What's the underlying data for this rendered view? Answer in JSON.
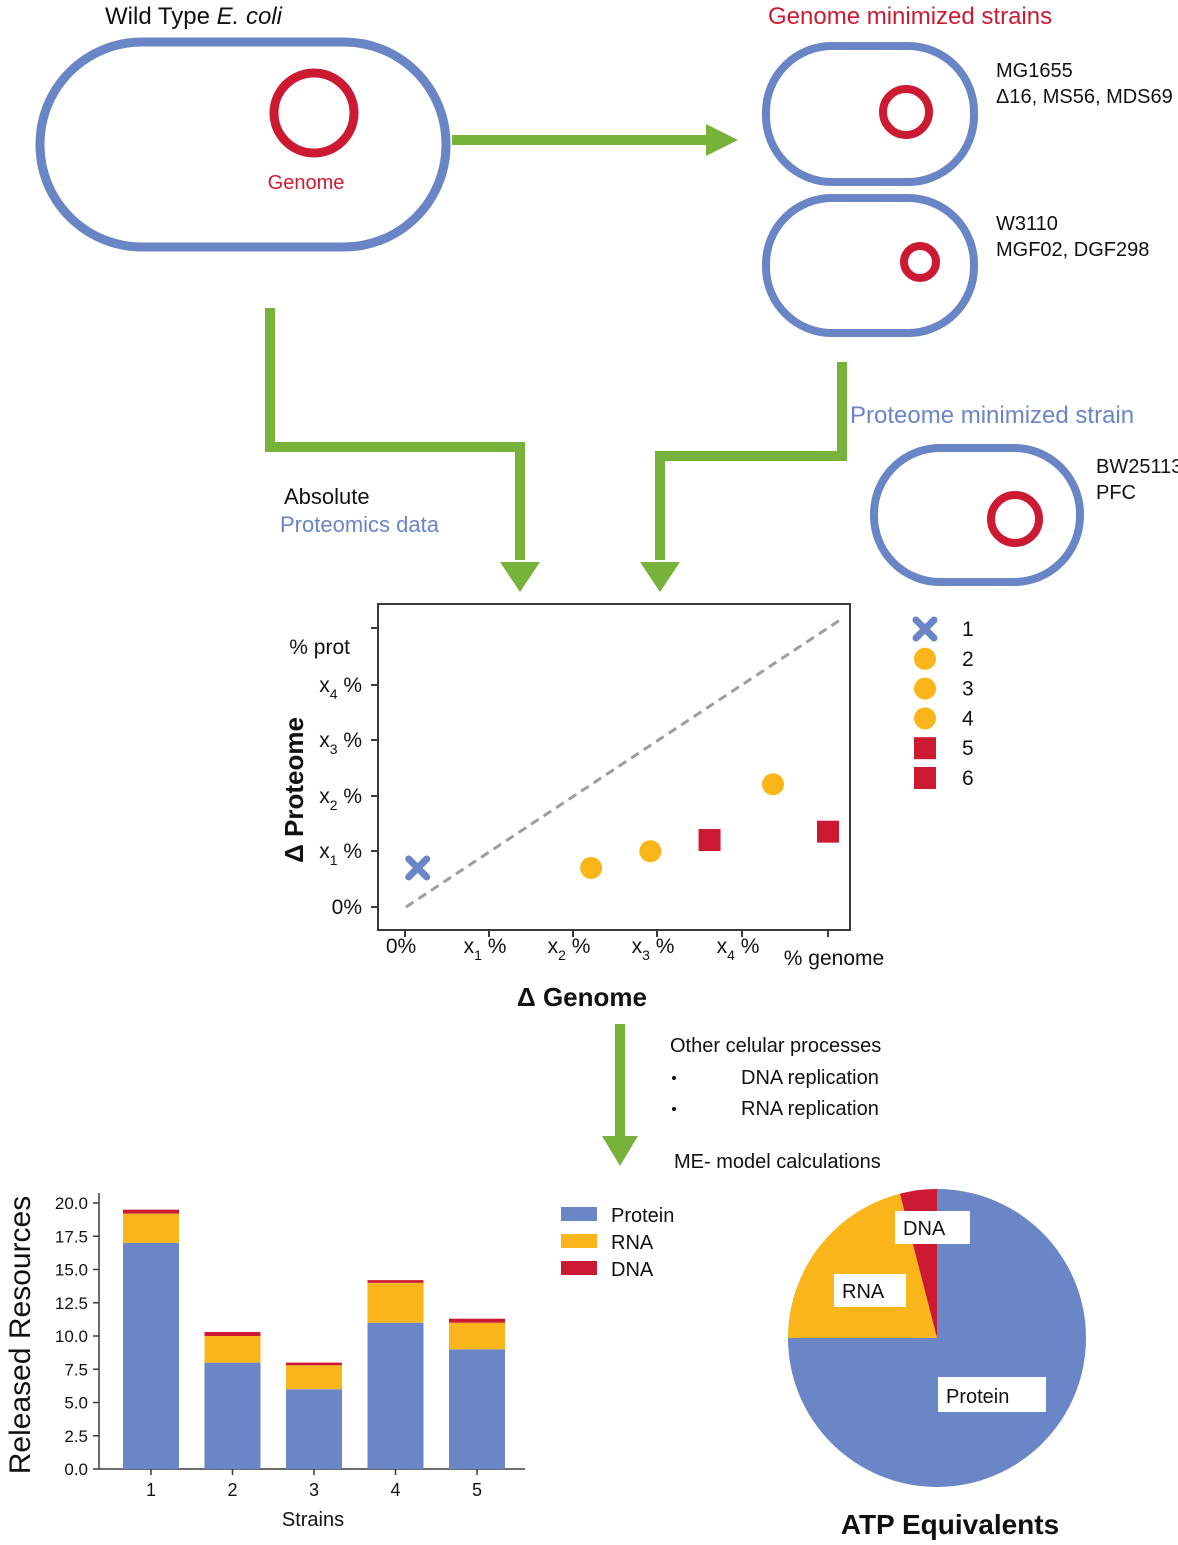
{
  "colors": {
    "cell_outline": "#6a85c6",
    "genome": "#cc1a33",
    "arrow": "#77b33b",
    "protein": "#6a86c6",
    "rna": "#f9b51a",
    "dna": "#cc1a33",
    "diagonal": "#9e9e9e",
    "axis": "#3a3a3a"
  },
  "top": {
    "wild_type_prefix": "Wild Type ",
    "wild_type_species": "E. coli",
    "genome_label": "Genome",
    "genome_min_title": "Genome minimized strains",
    "strain_group_1": [
      "MG1655",
      "Δ16, MS56, MDS69"
    ],
    "strain_group_2": [
      "W3110",
      "MGF02, DGF298"
    ],
    "proteome_min_title": "Proteome minimized strain",
    "strain_group_3": [
      "BW25113",
      "PFC"
    ],
    "absolute_label": "Absolute",
    "proteomics_label": "Proteomics data"
  },
  "scatter": {
    "y_axis_title": "Δ Proteome",
    "x_axis_title": "Δ Genome",
    "y_ticks": [
      {
        "main": "0%",
        "sub": ""
      },
      {
        "main": "x",
        "sub": "1",
        "suffix": " %"
      },
      {
        "main": "x",
        "sub": "2",
        "suffix": " %"
      },
      {
        "main": "x",
        "sub": "3",
        "suffix": " %"
      },
      {
        "main": "x",
        "sub": "4",
        "suffix": " %"
      },
      {
        "main": "% prot",
        "sub": ""
      }
    ],
    "x_ticks": [
      {
        "main": "0%",
        "sub": ""
      },
      {
        "main": "x",
        "sub": "1",
        "suffix": " %"
      },
      {
        "main": "x",
        "sub": "2",
        "suffix": " %"
      },
      {
        "main": "x",
        "sub": "3",
        "suffix": " %"
      },
      {
        "main": "x",
        "sub": "4",
        "suffix": " %"
      },
      {
        "main": "% genome",
        "sub": ""
      }
    ],
    "points": [
      {
        "label": "1",
        "marker": "x",
        "x": 0.15,
        "y": 0.7
      },
      {
        "label": "2",
        "marker": "circle",
        "x": 2.2,
        "y": 0.7
      },
      {
        "label": "3",
        "marker": "circle",
        "x": 2.9,
        "y": 1.0
      },
      {
        "label": "4",
        "marker": "circle",
        "x": 4.35,
        "y": 2.2
      },
      {
        "label": "5",
        "marker": "square",
        "x": 3.6,
        "y": 1.2
      },
      {
        "label": "6",
        "marker": "square",
        "x": 5.0,
        "y": 1.35
      }
    ],
    "legend": [
      {
        "label": "1",
        "marker": "x"
      },
      {
        "label": "2",
        "marker": "circle"
      },
      {
        "label": "3",
        "marker": "circle"
      },
      {
        "label": "4",
        "marker": "circle"
      },
      {
        "label": "5",
        "marker": "square"
      },
      {
        "label": "6",
        "marker": "square"
      }
    ]
  },
  "process": {
    "heading": "Other celular processes",
    "bullets": [
      "DNA replication",
      "RNA replication"
    ],
    "calc": "ME- model calculations"
  },
  "chart_data": [
    {
      "type": "bar",
      "stacked": true,
      "xlabel": "Strains",
      "ylabel": "Released Resources",
      "ylim": [
        0,
        20
      ],
      "yticks": [
        "0.0",
        "2.5",
        "5.0",
        "7.5",
        "10.0",
        "12.5",
        "15.0",
        "17.5",
        "20.0"
      ],
      "categories": [
        "1",
        "2",
        "3",
        "4",
        "5"
      ],
      "series": [
        {
          "name": "Protein",
          "values": [
            17.0,
            8.0,
            6.0,
            11.0,
            9.0
          ]
        },
        {
          "name": "RNA",
          "values": [
            2.2,
            2.0,
            1.8,
            3.0,
            2.0
          ]
        },
        {
          "name": "DNA",
          "values": [
            0.3,
            0.3,
            0.2,
            0.2,
            0.3
          ]
        }
      ],
      "legend": "top-right"
    },
    {
      "type": "pie",
      "title": "ATP Equivalents",
      "slices": [
        {
          "name": "Protein",
          "value": 75
        },
        {
          "name": "RNA",
          "value": 21
        },
        {
          "name": "DNA",
          "value": 4
        }
      ]
    }
  ]
}
